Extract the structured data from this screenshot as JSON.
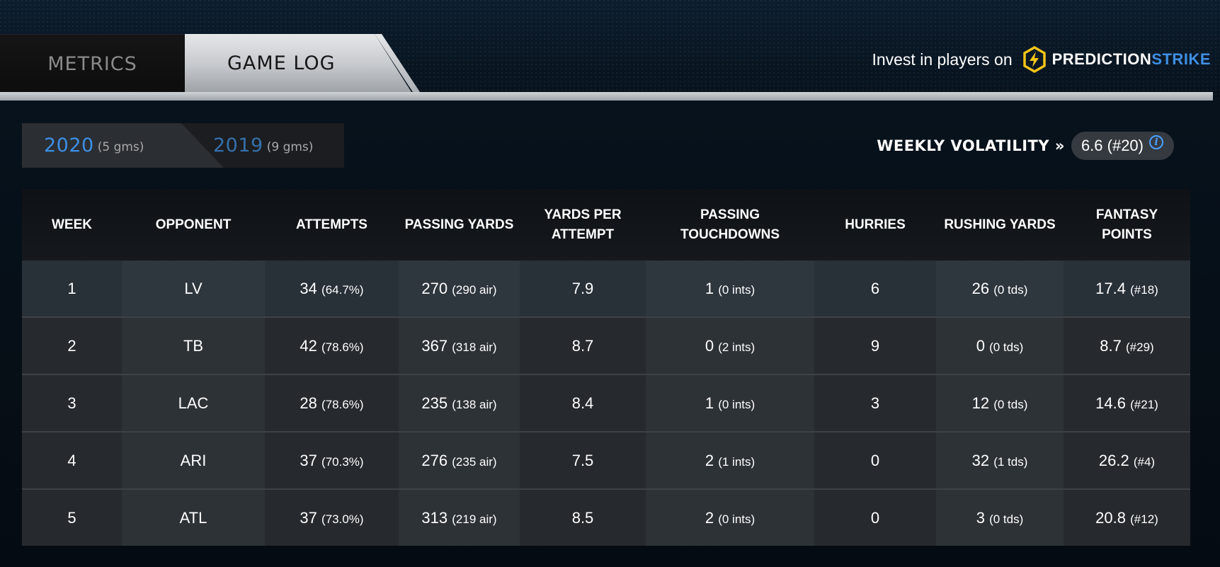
{
  "tabs": {
    "metrics_label": "METRICS",
    "gamelog_label": "GAME LOG"
  },
  "promo": {
    "text": "Invest in players on",
    "brand_primary": "PREDICTION",
    "brand_secondary": "STRIKE",
    "brand_icon": "lightning-hexagon-icon"
  },
  "seasons": [
    {
      "year": "2020",
      "games": "(5 gms)",
      "active": true
    },
    {
      "year": "2019",
      "games": "(9 gms)",
      "active": false
    }
  ],
  "volatility": {
    "label": "WEEKLY VOLATILITY »",
    "value": "6.6 (#20)",
    "info_icon": "info-icon"
  },
  "table": {
    "headers": {
      "week": "WEEK",
      "opponent": "OPPONENT",
      "attempts": "ATTEMPTS",
      "passing_yards": "PASSING YARDS",
      "ypa_line1": "YARDS PER",
      "ypa_line2": "ATTEMPT",
      "ptd_line1": "PASSING",
      "ptd_line2": "TOUCHDOWNS",
      "hurries": "HURRIES",
      "rushing_yards": "RUSHING YARDS",
      "fp_line1": "FANTASY",
      "fp_line2": "POINTS"
    },
    "rows": [
      {
        "week": "1",
        "opponent": "LV",
        "attempts": "34",
        "attempts_sub": "(64.7%)",
        "passing_yards": "270",
        "passing_yards_sub": "(290 air)",
        "ypa": "7.9",
        "ptd": "1",
        "ptd_sub": "(0 ints)",
        "hurries": "6",
        "rushing_yards": "26",
        "rushing_yards_sub": "(0 tds)",
        "fp": "17.4",
        "fp_sub": "(#18)"
      },
      {
        "week": "2",
        "opponent": "TB",
        "attempts": "42",
        "attempts_sub": "(78.6%)",
        "passing_yards": "367",
        "passing_yards_sub": "(318 air)",
        "ypa": "8.7",
        "ptd": "0",
        "ptd_sub": "(2 ints)",
        "hurries": "9",
        "rushing_yards": "0",
        "rushing_yards_sub": "(0 tds)",
        "fp": "8.7",
        "fp_sub": "(#29)"
      },
      {
        "week": "3",
        "opponent": "LAC",
        "attempts": "28",
        "attempts_sub": "(78.6%)",
        "passing_yards": "235",
        "passing_yards_sub": "(138 air)",
        "ypa": "8.4",
        "ptd": "1",
        "ptd_sub": "(0 ints)",
        "hurries": "3",
        "rushing_yards": "12",
        "rushing_yards_sub": "(0 tds)",
        "fp": "14.6",
        "fp_sub": "(#21)"
      },
      {
        "week": "4",
        "opponent": "ARI",
        "attempts": "37",
        "attempts_sub": "(70.3%)",
        "passing_yards": "276",
        "passing_yards_sub": "(235 air)",
        "ypa": "7.5",
        "ptd": "2",
        "ptd_sub": "(1 ints)",
        "hurries": "0",
        "rushing_yards": "32",
        "rushing_yards_sub": "(1 tds)",
        "fp": "26.2",
        "fp_sub": "(#4)"
      },
      {
        "week": "5",
        "opponent": "ATL",
        "attempts": "37",
        "attempts_sub": "(73.0%)",
        "passing_yards": "313",
        "passing_yards_sub": "(219 air)",
        "ypa": "8.5",
        "ptd": "2",
        "ptd_sub": "(0 ints)",
        "hurries": "0",
        "rushing_yards": "3",
        "rushing_yards_sub": "(0 tds)",
        "fp": "20.8",
        "fp_sub": "(#12)"
      }
    ]
  },
  "colors": {
    "accent_blue": "#3c8fe6",
    "brand_yellow": "#f5c518",
    "brand_blue": "#3f8fe3"
  }
}
